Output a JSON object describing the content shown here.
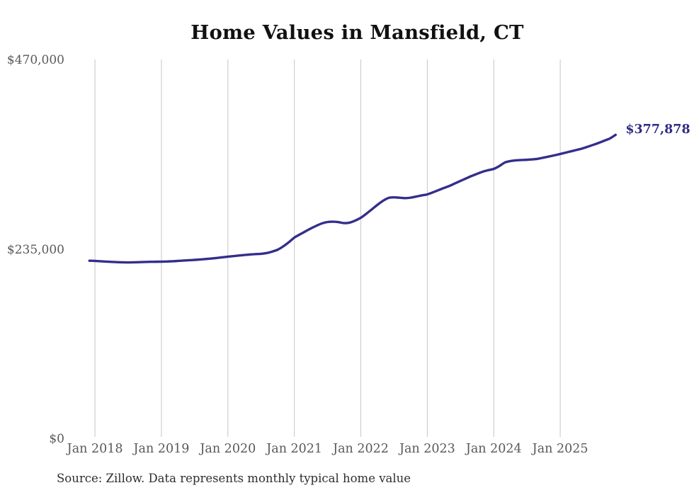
{
  "chart": {
    "title": "Home Values in Mansfield, CT",
    "source": "Source: Zillow. Data represents monthly typical home value",
    "end_label": "$377,878",
    "y_ticks": [
      "$470,000",
      "$235,000",
      "$0"
    ],
    "x_ticks": [
      "Jan 2018",
      "Jan 2019",
      "Jan 2020",
      "Jan 2021",
      "Jan 2022",
      "Jan 2023",
      "Jan 2024",
      "Jan 2025"
    ]
  },
  "colors": {
    "line": "#332e8c",
    "end_label": "#2f2b86",
    "grid": "#c6c6c6",
    "tick_text": "#595959",
    "title_text": "#111111",
    "source_text": "#2e2e2e",
    "background": "#ffffff"
  },
  "chart_data": {
    "type": "line",
    "title": "Home Values in Mansfield, CT",
    "xlabel": "",
    "ylabel": "",
    "ylim": [
      0,
      470000
    ],
    "y_tick_values": [
      470000,
      235000,
      0
    ],
    "x_tick_labels": [
      "Jan 2018",
      "Jan 2019",
      "Jan 2020",
      "Jan 2021",
      "Jan 2022",
      "Jan 2023",
      "Jan 2024",
      "Jan 2025"
    ],
    "grid": "vertical-only",
    "legend": "none",
    "end_value": 377878,
    "end_value_label": "$377,878",
    "series": [
      {
        "name": "Monthly typical home value",
        "months": [
          "2017-12",
          "2018-01",
          "2018-02",
          "2018-03",
          "2018-04",
          "2018-05",
          "2018-06",
          "2018-07",
          "2018-08",
          "2018-09",
          "2018-10",
          "2018-11",
          "2018-12",
          "2019-01",
          "2019-02",
          "2019-03",
          "2019-04",
          "2019-05",
          "2019-06",
          "2019-07",
          "2019-08",
          "2019-09",
          "2019-10",
          "2019-11",
          "2019-12",
          "2020-01",
          "2020-02",
          "2020-03",
          "2020-04",
          "2020-05",
          "2020-06",
          "2020-07",
          "2020-08",
          "2020-09",
          "2020-10",
          "2020-11",
          "2020-12",
          "2021-01",
          "2021-02",
          "2021-03",
          "2021-04",
          "2021-05",
          "2021-06",
          "2021-07",
          "2021-08",
          "2021-09",
          "2021-10",
          "2021-11",
          "2021-12",
          "2022-01",
          "2022-02",
          "2022-03",
          "2022-04",
          "2022-05",
          "2022-06",
          "2022-07",
          "2022-08",
          "2022-09",
          "2022-10",
          "2022-11",
          "2022-12",
          "2023-01",
          "2023-02",
          "2023-03",
          "2023-04",
          "2023-05",
          "2023-06",
          "2023-07",
          "2023-08",
          "2023-09",
          "2023-10",
          "2023-11",
          "2023-12",
          "2024-01",
          "2024-02",
          "2024-03",
          "2024-04",
          "2024-05",
          "2024-06",
          "2024-07",
          "2024-08",
          "2024-09",
          "2024-10",
          "2024-11",
          "2024-12",
          "2025-01",
          "2025-02",
          "2025-03",
          "2025-04",
          "2025-05",
          "2025-06",
          "2025-07",
          "2025-08",
          "2025-09",
          "2025-10",
          "2025-11"
        ],
        "values": [
          221700,
          221400,
          221000,
          220600,
          220200,
          219900,
          219700,
          219600,
          219700,
          219900,
          220100,
          220300,
          220400,
          220500,
          220700,
          221000,
          221400,
          221900,
          222300,
          222700,
          223200,
          223800,
          224400,
          225100,
          225900,
          226700,
          227400,
          228100,
          228800,
          229400,
          229900,
          230200,
          231200,
          233000,
          235400,
          239500,
          244600,
          250400,
          254300,
          258100,
          261800,
          265100,
          268000,
          269700,
          270100,
          269500,
          268300,
          269000,
          271500,
          275000,
          280000,
          285500,
          291000,
          296000,
          299600,
          300300,
          299800,
          299300,
          299900,
          301300,
          302700,
          304000,
          306500,
          309200,
          311900,
          314500,
          317600,
          320700,
          323800,
          326800,
          329500,
          332100,
          334000,
          335600,
          339100,
          343500,
          345300,
          346200,
          346600,
          346900,
          347400,
          348200,
          349600,
          351000,
          352500,
          354100,
          355800,
          357500,
          359200,
          361000,
          363200,
          365500,
          368000,
          370700,
          373500,
          377878
        ]
      }
    ]
  }
}
